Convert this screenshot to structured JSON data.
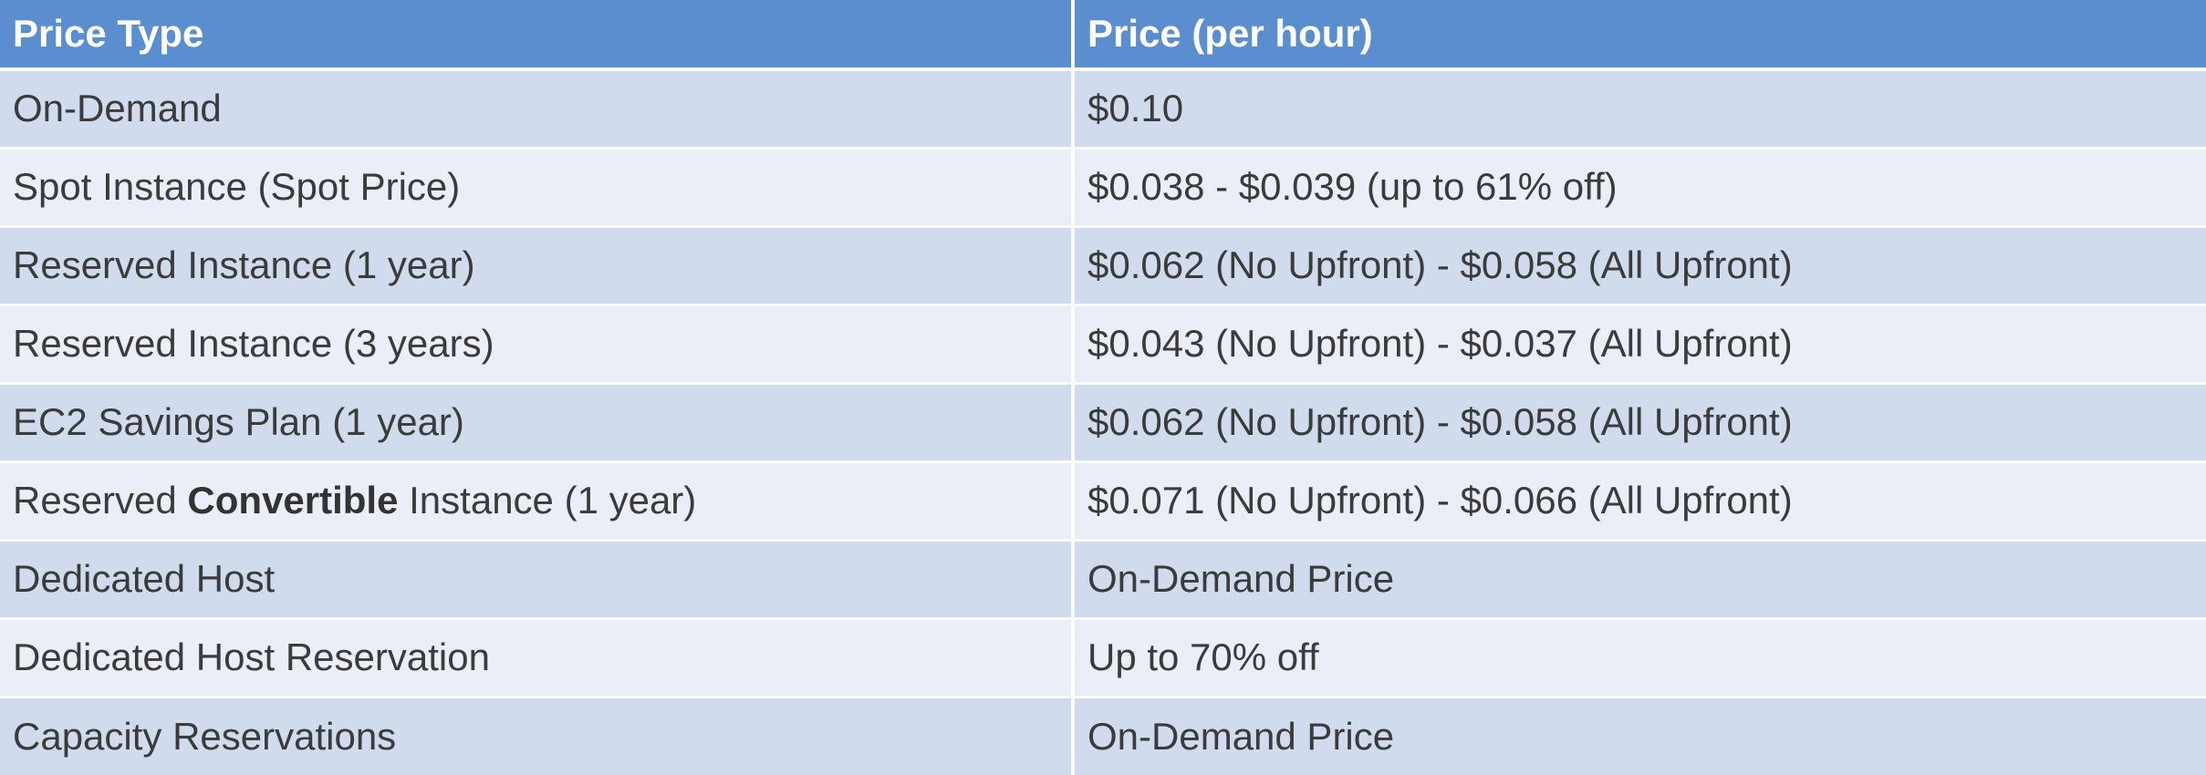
{
  "table": {
    "headers": {
      "price_type": "Price Type",
      "price_per_hour": "Price (per hour)"
    },
    "rows": [
      {
        "type_prefix": "On-Demand",
        "type_bold": "",
        "type_suffix": "",
        "price": "$0.10"
      },
      {
        "type_prefix": "Spot Instance (Spot Price)",
        "type_bold": "",
        "type_suffix": "",
        "price": "$0.038 - $0.039 (up to 61% off)"
      },
      {
        "type_prefix": "Reserved Instance (1 year)",
        "type_bold": "",
        "type_suffix": "",
        "price": "$0.062 (No Upfront) - $0.058 (All Upfront)"
      },
      {
        "type_prefix": "Reserved Instance (3 years)",
        "type_bold": "",
        "type_suffix": "",
        "price": "$0.043 (No Upfront) - $0.037 (All Upfront)"
      },
      {
        "type_prefix": "EC2 Savings Plan (1 year)",
        "type_bold": "",
        "type_suffix": "",
        "price": "$0.062 (No Upfront) - $0.058 (All Upfront)"
      },
      {
        "type_prefix": "Reserved ",
        "type_bold": "Convertible",
        "type_suffix": " Instance (1 year)",
        "price": "$0.071 (No Upfront) - $0.066 (All Upfront)"
      },
      {
        "type_prefix": "Dedicated Host",
        "type_bold": "",
        "type_suffix": "",
        "price": "On-Demand Price"
      },
      {
        "type_prefix": "Dedicated Host Reservation",
        "type_bold": "",
        "type_suffix": "",
        "price": "Up to 70% off"
      },
      {
        "type_prefix": "Capacity Reservations",
        "type_bold": "",
        "type_suffix": "",
        "price": "On-Demand Price"
      }
    ]
  },
  "colors": {
    "header_bg": "#5b8ecf",
    "header_text": "#ffffff",
    "row_odd_bg": "#d0dbed",
    "row_even_bg": "#e9eef7",
    "body_text": "#3b3b3b"
  }
}
